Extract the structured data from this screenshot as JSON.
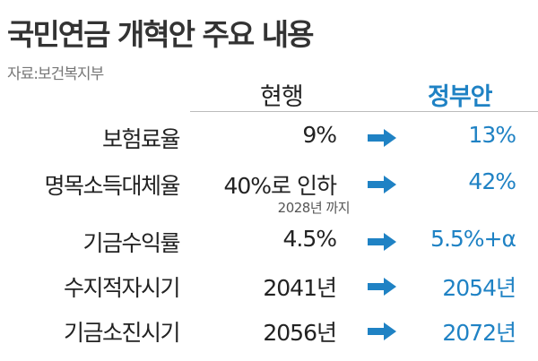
{
  "header": {
    "title": "국민연금 개혁안 주요 내용",
    "source": "자료:보건복지부"
  },
  "table": {
    "columns": [
      "현행",
      "정부안"
    ],
    "rows": [
      {
        "label": "보험료율",
        "current": "9%",
        "proposal": "13%"
      },
      {
        "label": "명목소득대체율",
        "current": "40%로 인하",
        "note": "2028년 까지",
        "proposal": "42%"
      },
      {
        "label": "기금수익률",
        "current": "4.5%",
        "proposal": "5.5%+α"
      },
      {
        "label": "수지적자시기",
        "current": "2041년",
        "proposal": "2054년"
      },
      {
        "label": "기금소진시기",
        "current": "2056년",
        "proposal": "2072년"
      }
    ]
  }
}
